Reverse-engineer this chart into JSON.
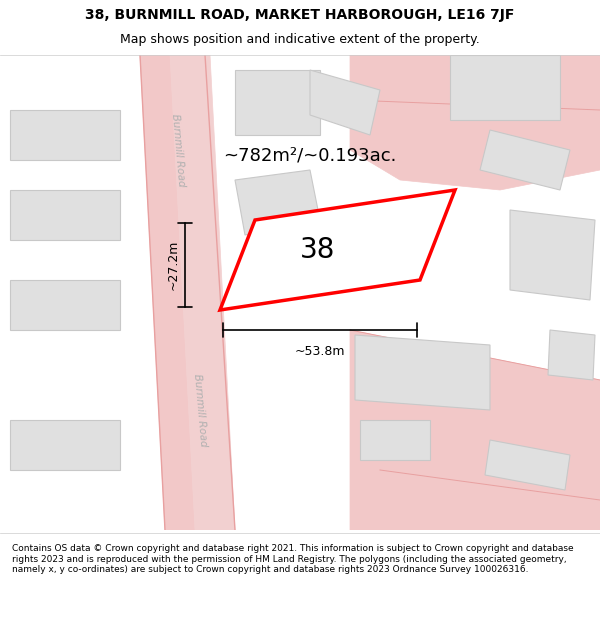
{
  "title_line1": "38, BURNMILL ROAD, MARKET HARBOROUGH, LE16 7JF",
  "title_line2": "Map shows position and indicative extent of the property.",
  "footer_text": "Contains OS data © Crown copyright and database right 2021. This information is subject to Crown copyright and database rights 2023 and is reproduced with the permission of HM Land Registry. The polygons (including the associated geometry, namely x, y co-ordinates) are subject to Crown copyright and database rights 2023 Ordnance Survey 100026316.",
  "background_color": "#ffffff",
  "map_bg": "#f5f5f5",
  "road_color": "#f5c8c8",
  "building_fill": "#e0e0e0",
  "building_edge": "#c8c8c8",
  "highlight_fill": "#ffffff",
  "highlight_edge": "#ff0000",
  "road_line_color": "#e8a0a0",
  "dim_line_color": "#000000",
  "label_38": "38",
  "area_label": "~782m²/~0.193ac.",
  "dim_h": "~27.2m",
  "dim_w": "~53.8m",
  "road_label": "Burnmill Road",
  "title_fontsize": 10,
  "subtitle_fontsize": 9,
  "footer_fontsize": 6.5
}
